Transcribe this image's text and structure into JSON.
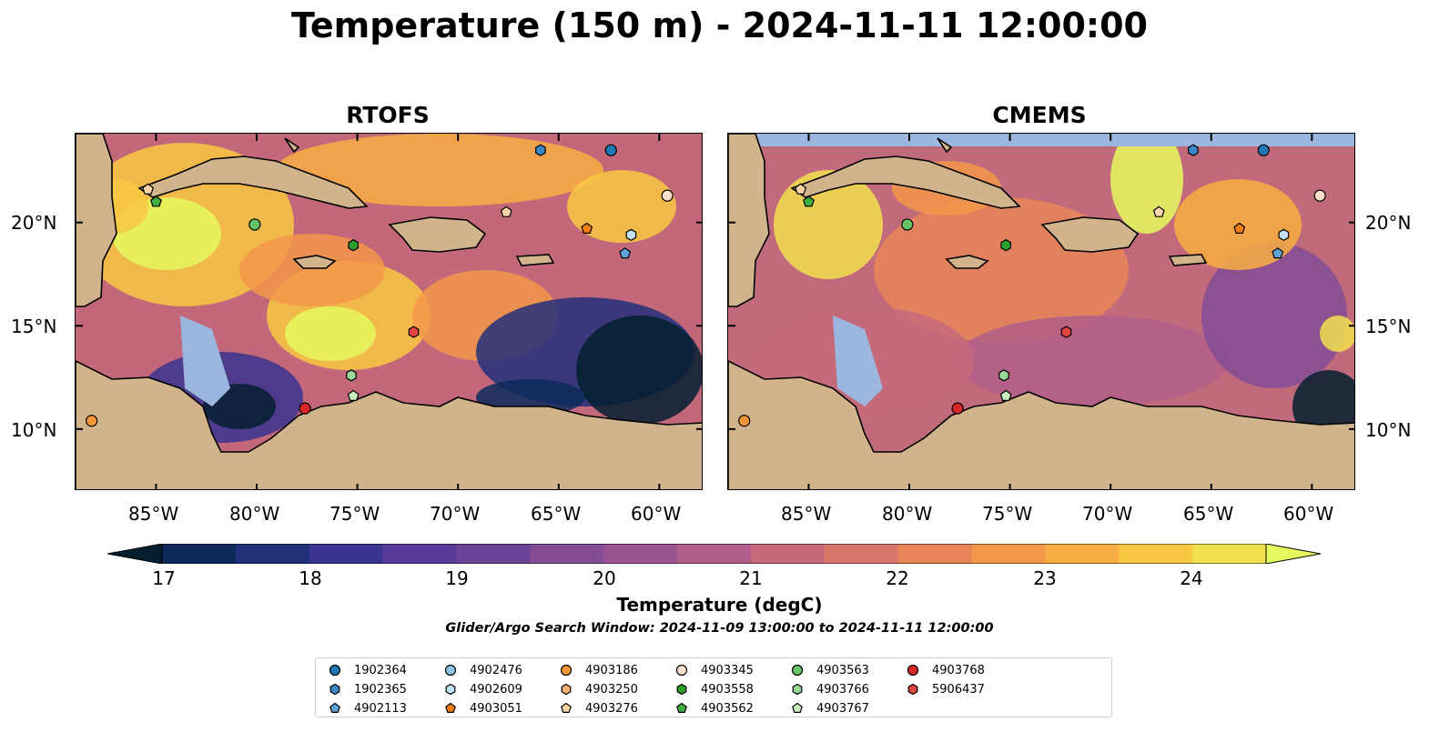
{
  "title": "Temperature (150 m) - 2024-11-11 12:00:00",
  "panels": [
    {
      "name": "RTOFS"
    },
    {
      "name": "CMEMS"
    }
  ],
  "lon_ticks": [
    "85°W",
    "80°W",
    "75°W",
    "70°W",
    "65°W",
    "60°W"
  ],
  "lat_ticks": [
    "20°N",
    "15°N",
    "10°N"
  ],
  "colorbar": {
    "ticks": [
      "17",
      "18",
      "19",
      "20",
      "21",
      "22",
      "23",
      "24"
    ],
    "label": "Temperature (degC)",
    "range": [
      17,
      24.5
    ],
    "extend": "both",
    "colormap": [
      "#041e30",
      "#0c2a5c",
      "#22307a",
      "#3b3490",
      "#573b98",
      "#6c4296",
      "#834c95",
      "#9a5492",
      "#b15e8a",
      "#c66a7b",
      "#d8766a",
      "#e88558",
      "#f3984a",
      "#f8ae42",
      "#f8c842",
      "#f2e04f",
      "#e5f95e"
    ]
  },
  "search_window": "Glider/Argo Search Window: 2024-11-09 13:00:00 to 2024-11-11 12:00:00",
  "legend": [
    {
      "id": "1902364",
      "marker": "circle",
      "color": "#1f77b4"
    },
    {
      "id": "1902365",
      "marker": "hexagon",
      "color": "#3a86c7"
    },
    {
      "id": "4902113",
      "marker": "pentagon",
      "color": "#5fa2d8"
    },
    {
      "id": "4902476",
      "marker": "circle",
      "color": "#8ec3e6"
    },
    {
      "id": "4902609",
      "marker": "hexagon",
      "color": "#c2e2f4"
    },
    {
      "id": "4903051",
      "marker": "pentagon",
      "color": "#f27e0f"
    },
    {
      "id": "4903186",
      "marker": "circle",
      "color": "#f6963a"
    },
    {
      "id": "4903250",
      "marker": "hexagon",
      "color": "#fbb276"
    },
    {
      "id": "4903276",
      "marker": "pentagon",
      "color": "#fdd3a8"
    },
    {
      "id": "4903345",
      "marker": "circle",
      "color": "#fde0cb"
    },
    {
      "id": "4903558",
      "marker": "hexagon",
      "color": "#2ca02c"
    },
    {
      "id": "4903562",
      "marker": "pentagon",
      "color": "#3fae3f"
    },
    {
      "id": "4903563",
      "marker": "circle",
      "color": "#66c466"
    },
    {
      "id": "4903766",
      "marker": "hexagon",
      "color": "#9ad89a"
    },
    {
      "id": "4903767",
      "marker": "pentagon",
      "color": "#c6edbe"
    },
    {
      "id": "4903768",
      "marker": "circle",
      "color": "#d62728"
    },
    {
      "id": "5906437",
      "marker": "hexagon",
      "color": "#e0453f"
    }
  ],
  "observations": [
    {
      "id": "4903186",
      "lon": -88.2,
      "lat": 10.4
    },
    {
      "id": "4903276",
      "lon": -85.4,
      "lat": 21.6
    },
    {
      "id": "4903562",
      "lon": -85.0,
      "lat": 21.0
    },
    {
      "id": "4903563",
      "lon": -80.1,
      "lat": 19.9
    },
    {
      "id": "4903558",
      "lon": -75.2,
      "lat": 18.9
    },
    {
      "id": "1902365",
      "lon": -65.9,
      "lat": 23.5
    },
    {
      "id": "1902364",
      "lon": -62.4,
      "lat": 23.5
    },
    {
      "id": "4903276",
      "lon": -67.6,
      "lat": 20.5
    },
    {
      "id": "4903051",
      "lon": -63.6,
      "lat": 19.7
    },
    {
      "id": "4903345",
      "lon": -59.6,
      "lat": 21.3
    },
    {
      "id": "4902609",
      "lon": -61.4,
      "lat": 19.4
    },
    {
      "id": "4902113",
      "lon": -61.7,
      "lat": 18.5
    },
    {
      "id": "5906437",
      "lon": -72.2,
      "lat": 14.7
    },
    {
      "id": "4903766",
      "lon": -75.3,
      "lat": 12.6
    },
    {
      "id": "4903767",
      "lon": -75.2,
      "lat": 11.6
    },
    {
      "id": "4903768",
      "lon": -77.6,
      "lat": 11.0
    }
  ]
}
